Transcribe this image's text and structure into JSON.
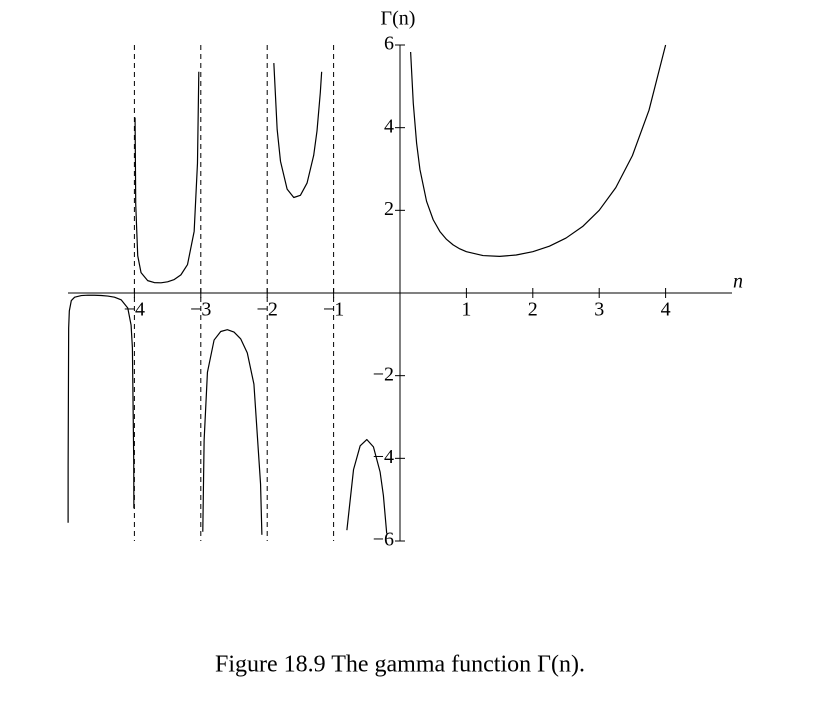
{
  "chart_data": {
    "type": "line",
    "y_label": "Γ(n)",
    "x_label": "n",
    "caption": "Figure 18.9   The gamma function Γ(n).",
    "xlim": [
      -5,
      5
    ],
    "ylim": [
      -6,
      6
    ],
    "xticks": [
      {
        "value": -4,
        "label": "−4"
      },
      {
        "value": -3,
        "label": "−3"
      },
      {
        "value": -2,
        "label": "−2"
      },
      {
        "value": -1,
        "label": "−1"
      },
      1,
      2,
      3,
      4
    ],
    "yticks": [
      {
        "value": -6,
        "label": "−6"
      },
      {
        "value": -4,
        "label": "−4"
      },
      {
        "value": -2,
        "label": "−2"
      },
      2,
      4,
      6
    ],
    "asymptotes": [
      -4,
      -3,
      -2,
      -1
    ],
    "series": [
      {
        "color": "#000000",
        "x": [
          -4.9985,
          -4.998,
          -4.99,
          -4.98,
          -4.95,
          -4.9,
          -4.8,
          -4.7,
          -4.6,
          -4.5,
          -4.4,
          -4.3,
          -4.2,
          -4.1,
          -4.05,
          -4.03,
          -4.01,
          -4.008,
          null,
          -3.99,
          -3.98,
          -3.95,
          -3.9,
          -3.8,
          -3.7,
          -3.6,
          -3.5,
          -3.4,
          -3.3,
          -3.2,
          -3.1,
          -3.05,
          -3.03,
          null,
          -2.97,
          -2.95,
          -2.9,
          -2.8,
          -2.7,
          -2.6,
          -2.5,
          -2.4,
          -2.3,
          -2.2,
          -2.1,
          -2.08,
          null,
          -1.9,
          -1.85,
          -1.8,
          -1.7,
          -1.6,
          -1.5,
          -1.4,
          -1.3,
          -1.25,
          -1.2,
          -1.18,
          null,
          -0.8,
          -0.7,
          -0.6,
          -0.5,
          -0.4,
          -0.3,
          -0.25,
          -0.2,
          null,
          0.16,
          0.2,
          0.25,
          0.3,
          0.4,
          0.5,
          0.6,
          0.7,
          0.8,
          0.9,
          1,
          1.25,
          1.5,
          1.75,
          2,
          2.25,
          2.5,
          2.75,
          3,
          3.25,
          3.5,
          3.75,
          4
        ],
        "values": [
          -5.56,
          -4.17,
          -0.8507,
          -0.4313,
          -0.1822,
          -0.1004,
          -0.0624,
          -0.0535,
          -0.0537,
          -0.06,
          -0.0741,
          -0.102,
          -0.1641,
          -0.364,
          -0.7756,
          -1.3285,
          -4.104,
          -5.21,
          null,
          4.245,
          2.148,
          0.902,
          0.4919,
          0.2996,
          0.2516,
          0.2469,
          0.2701,
          0.3259,
          0.4385,
          0.6891,
          1.4923,
          3.141,
          5.354,
          null,
          -5.775,
          -3.5628,
          -1.9184,
          -1.1386,
          -0.9311,
          -0.8887,
          -0.9453,
          -1.108,
          -1.4472,
          -2.205,
          -4.626,
          -5.85,
          null,
          5.5635,
          3.956,
          3.1881,
          2.5139,
          2.3106,
          2.3633,
          2.6593,
          3.3285,
          3.9213,
          4.8509,
          5.351,
          null,
          -5.7386,
          -4.2737,
          -3.697,
          -3.5449,
          -3.723,
          -4.327,
          -4.9017,
          -5.8211,
          null,
          5.83,
          4.591,
          3.6256,
          2.9916,
          2.2182,
          1.7725,
          1.4892,
          1.2981,
          1.1642,
          1.0686,
          1,
          0.9064,
          0.8862,
          0.9191,
          1,
          1.133,
          1.3293,
          1.6084,
          2,
          2.5493,
          3.3234,
          4.423,
          6
        ]
      }
    ]
  }
}
